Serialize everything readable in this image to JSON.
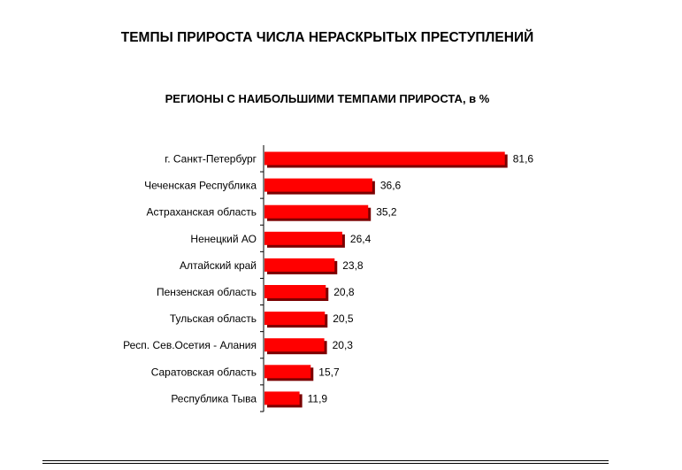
{
  "page": {
    "title": "ТЕМПЫ ПРИРОСТА ЧИСЛА НЕРАСКРЫТЫХ ПРЕСТУПЛЕНИЙ"
  },
  "chart_data": {
    "type": "bar",
    "orientation": "horizontal",
    "title": "РЕГИОНЫ С НАИБОЛЬШИМИ ТЕМПАМИ ПРИРОСТА, в %",
    "categories": [
      "г. Санкт-Петербург",
      "Чеченская Республика",
      "Астраханская область",
      "Ненецкий АО",
      "Алтайский край",
      "Пензенская область",
      "Тульская область",
      "Респ. Сев.Осетия - Алания",
      "Саратовская область",
      "Республика Тыва"
    ],
    "values": [
      81.6,
      36.6,
      35.2,
      26.4,
      23.8,
      20.8,
      20.5,
      20.3,
      15.7,
      11.9
    ],
    "value_labels": [
      "81,6",
      "36,6",
      "35,2",
      "26,4",
      "23,8",
      "20,8",
      "20,5",
      "20,3",
      "15,7",
      "11,9"
    ],
    "bar_color": "#ff0000",
    "bar_shadow_color": "#7a0000",
    "axis_color": "#000000",
    "grid": false,
    "legend": false
  }
}
